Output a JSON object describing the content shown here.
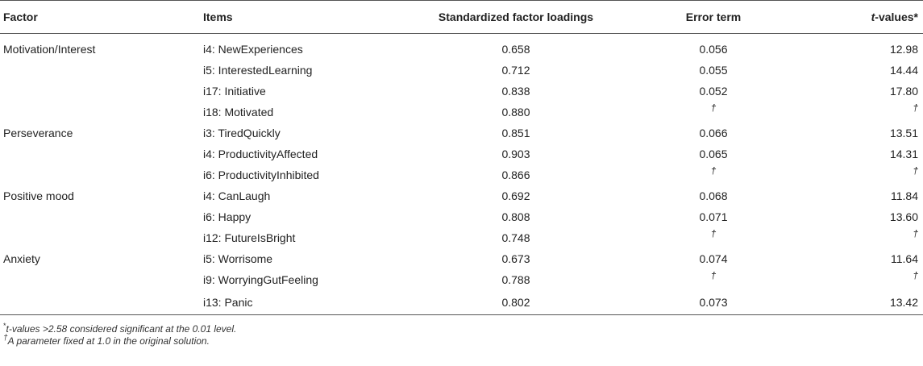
{
  "header": {
    "factor": "Factor",
    "items": "Items",
    "loadings": "Standardized factor loadings",
    "error": "Error term",
    "t_values_italic": "t",
    "t_values_rest": "-values*"
  },
  "rows": [
    {
      "factor": "Motivation/Interest",
      "item": "i4: NewExperiences",
      "loading": "0.658",
      "error": "0.056",
      "t": "12.98"
    },
    {
      "factor": "",
      "item": "i5: InterestedLearning",
      "loading": "0.712",
      "error": "0.055",
      "t": "14.44"
    },
    {
      "factor": "",
      "item": "i17: Initiative",
      "loading": "0.838",
      "error": "0.052",
      "t": "17.80"
    },
    {
      "factor": "",
      "item": "i18: Motivated",
      "loading": "0.880",
      "error": "†",
      "t": "†"
    },
    {
      "factor": "Perseverance",
      "item": "i3: TiredQuickly",
      "loading": "0.851",
      "error": "0.066",
      "t": "13.51"
    },
    {
      "factor": "",
      "item": "i4: ProductivityAffected",
      "loading": "0.903",
      "error": "0.065",
      "t": "14.31"
    },
    {
      "factor": "",
      "item": "i6: ProductivityInhibited",
      "loading": "0.866",
      "error": "†",
      "t": "†"
    },
    {
      "factor": "Positive mood",
      "item": "i4: CanLaugh",
      "loading": "0.692",
      "error": "0.068",
      "t": "11.84"
    },
    {
      "factor": "",
      "item": "i6: Happy",
      "loading": "0.808",
      "error": "0.071",
      "t": "13.60"
    },
    {
      "factor": "",
      "item": "i12: FutureIsBright",
      "loading": "0.748",
      "error": "†",
      "t": "†"
    },
    {
      "factor": "Anxiety",
      "item": "i5: Worrisome",
      "loading": "0.673",
      "error": "0.074",
      "t": "11.64"
    },
    {
      "factor": "",
      "item": "i9: WorryingGutFeeling",
      "loading": "0.788",
      "error": "†",
      "t": "†"
    },
    {
      "factor": "",
      "item": "i13: Panic",
      "loading": "0.802",
      "error": "0.073",
      "t": "13.42"
    }
  ],
  "notes": {
    "note1_mark": "*",
    "note1_text": "t-values >2.58 considered significant at the 0.01 level.",
    "note2_mark": "†",
    "note2_text": "A parameter fixed at 1.0 in the original solution."
  }
}
